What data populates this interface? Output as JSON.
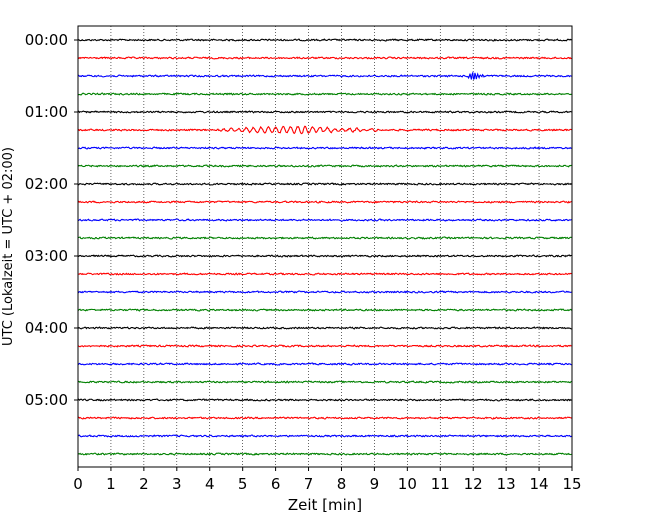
{
  "chart_data": {
    "type": "line",
    "title": "",
    "xlabel": "Zeit  [min]",
    "ylabel": "UTC (Lokalzeit = UTC + 02:00)",
    "xlim": [
      0,
      15
    ],
    "x_ticks": [
      "0",
      "1",
      "2",
      "3",
      "4",
      "5",
      "6",
      "7",
      "8",
      "9",
      "10",
      "11",
      "12",
      "13",
      "14",
      "15"
    ],
    "y_ticks": [
      "00:00",
      "01:00",
      "02:00",
      "03:00",
      "04:00",
      "05:00"
    ],
    "traces_per_hour": 4,
    "trace_count": 24,
    "trace_minutes": 15,
    "grid": "vertical dotted lines at each minute",
    "colors": [
      "#000000",
      "#ff0000",
      "#0000ff",
      "#008000"
    ],
    "events": [
      {
        "trace_start": "00:30",
        "minute": 12.0,
        "description": "short high-amplitude burst"
      },
      {
        "trace_start": "01:15",
        "minute": 6.0,
        "description": "elevated oscillation between about 4 and 9.5 min"
      }
    ]
  }
}
